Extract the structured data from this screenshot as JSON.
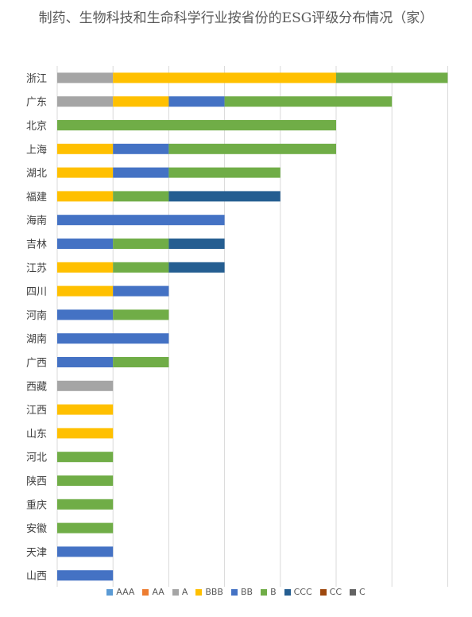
{
  "chart_data": {
    "type": "bar",
    "orientation": "horizontal",
    "stacked": true,
    "title": "制药、生物科技和生命科学行业按省份的ESG评级分布情况（家）",
    "categories": [
      "浙江",
      "广东",
      "北京",
      "上海",
      "湖北",
      "福建",
      "海南",
      "吉林",
      "江苏",
      "四川",
      "河南",
      "湖南",
      "广西",
      "西藏",
      "江西",
      "山东",
      "河北",
      "陕西",
      "重庆",
      "安徽",
      "天津",
      "山西"
    ],
    "series": [
      {
        "name": "AAA",
        "color": "#5B9BD5",
        "values": [
          0,
          0,
          0,
          0,
          0,
          0,
          0,
          0,
          0,
          0,
          0,
          0,
          0,
          0,
          0,
          0,
          0,
          0,
          0,
          0,
          0,
          0
        ]
      },
      {
        "name": "AA",
        "color": "#ED7D31",
        "values": [
          0,
          0,
          0,
          0,
          0,
          0,
          0,
          0,
          0,
          0,
          0,
          0,
          0,
          0,
          0,
          0,
          0,
          0,
          0,
          0,
          0,
          0
        ]
      },
      {
        "name": "A",
        "color": "#A5A5A5",
        "values": [
          1,
          1,
          0,
          0,
          0,
          0,
          0,
          0,
          0,
          0,
          0,
          0,
          0,
          1,
          0,
          0,
          0,
          0,
          0,
          0,
          0,
          0
        ]
      },
      {
        "name": "BBB",
        "color": "#FFC000",
        "values": [
          4,
          1,
          0,
          1,
          1,
          1,
          0,
          0,
          1,
          1,
          0,
          0,
          0,
          0,
          1,
          1,
          0,
          0,
          0,
          0,
          0,
          0
        ]
      },
      {
        "name": "BB",
        "color": "#4472C4",
        "values": [
          0,
          1,
          0,
          1,
          1,
          0,
          3,
          1,
          0,
          1,
          1,
          2,
          1,
          0,
          0,
          0,
          0,
          0,
          0,
          0,
          1,
          1
        ]
      },
      {
        "name": "B",
        "color": "#70AD47",
        "values": [
          2,
          3,
          5,
          3,
          2,
          1,
          0,
          1,
          1,
          0,
          1,
          0,
          1,
          0,
          0,
          0,
          1,
          1,
          1,
          1,
          0,
          0
        ]
      },
      {
        "name": "CCC",
        "color": "#255E91",
        "values": [
          0,
          0,
          0,
          0,
          0,
          2,
          0,
          1,
          1,
          0,
          0,
          0,
          0,
          0,
          0,
          0,
          0,
          0,
          0,
          0,
          0,
          0
        ]
      },
      {
        "name": "CC",
        "color": "#9E480E",
        "values": [
          0,
          0,
          0,
          0,
          0,
          0,
          0,
          0,
          0,
          0,
          0,
          0,
          0,
          0,
          0,
          0,
          0,
          0,
          0,
          0,
          0,
          0
        ]
      },
      {
        "name": "C",
        "color": "#636363",
        "values": [
          0,
          0,
          0,
          0,
          0,
          0,
          0,
          0,
          0,
          0,
          0,
          0,
          0,
          0,
          0,
          0,
          0,
          0,
          0,
          0,
          0,
          0
        ]
      }
    ],
    "xlim": [
      0,
      7
    ],
    "grid": true,
    "legend_position": "bottom"
  }
}
